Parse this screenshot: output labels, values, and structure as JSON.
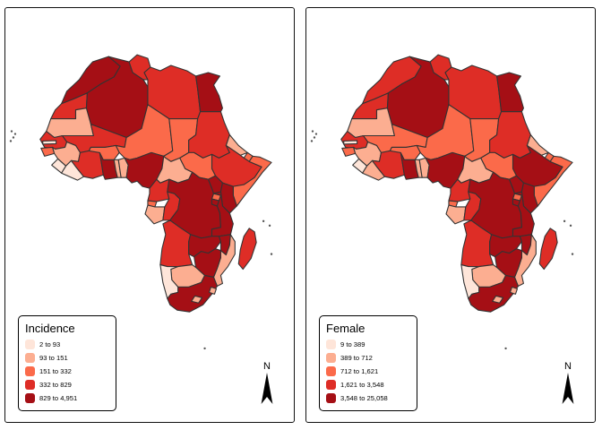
{
  "figure": {
    "type": "choropleth",
    "region": "Africa",
    "panel_count": 2
  },
  "palette": {
    "c1": "#fee5d9",
    "c2": "#fcae91",
    "c3": "#fb6a4a",
    "c4": "#de2d26",
    "c5": "#a50f15"
  },
  "map_border_color": "#333333",
  "panels": [
    {
      "id": "incidence",
      "legend_title": "Incidence",
      "value_key": "incidence_class",
      "north_label": "N",
      "legend_items": [
        {
          "label": "2 to 93",
          "class": 1
        },
        {
          "label": "93 to 151",
          "class": 2
        },
        {
          "label": "151 to 332",
          "class": 3
        },
        {
          "label": "332 to 829",
          "class": 4
        },
        {
          "label": "829 to 4,951",
          "class": 5
        }
      ]
    },
    {
      "id": "female",
      "legend_title": "Female",
      "value_key": "female_class",
      "north_label": "N",
      "legend_items": [
        {
          "label": "9 to 389",
          "class": 1
        },
        {
          "label": "389 to 712",
          "class": 2
        },
        {
          "label": "712 to 1,621",
          "class": 3
        },
        {
          "label": "1,621 to 3,548",
          "class": 4
        },
        {
          "label": "3,548 to 25,058",
          "class": 5
        }
      ]
    }
  ],
  "map": {
    "countries": [
      {
        "name": "morocco",
        "incidence_class": 5,
        "female_class": 4
      },
      {
        "name": "western-sahara",
        "incidence_class": 4,
        "female_class": 4
      },
      {
        "name": "algeria",
        "incidence_class": 5,
        "female_class": 5
      },
      {
        "name": "tunisia",
        "incidence_class": 4,
        "female_class": 4
      },
      {
        "name": "libya",
        "incidence_class": 4,
        "female_class": 4
      },
      {
        "name": "egypt",
        "incidence_class": 5,
        "female_class": 5
      },
      {
        "name": "mauritania",
        "incidence_class": 2,
        "female_class": 2
      },
      {
        "name": "mali",
        "incidence_class": 4,
        "female_class": 3
      },
      {
        "name": "niger",
        "incidence_class": 3,
        "female_class": 3
      },
      {
        "name": "chad",
        "incidence_class": 3,
        "female_class": 3
      },
      {
        "name": "sudan",
        "incidence_class": 4,
        "female_class": 4
      },
      {
        "name": "eritrea",
        "incidence_class": 2,
        "female_class": 2
      },
      {
        "name": "djibouti",
        "incidence_class": 3,
        "female_class": 3
      },
      {
        "name": "ethiopia",
        "incidence_class": 4,
        "female_class": 5
      },
      {
        "name": "somalia",
        "incidence_class": 3,
        "female_class": 3
      },
      {
        "name": "senegal",
        "incidence_class": 4,
        "female_class": 4
      },
      {
        "name": "gambia",
        "incidence_class": 1,
        "female_class": 1
      },
      {
        "name": "guinea-bissau",
        "incidence_class": 3,
        "female_class": 3
      },
      {
        "name": "guinea",
        "incidence_class": 2,
        "female_class": 2
      },
      {
        "name": "sierra-leone",
        "incidence_class": 1,
        "female_class": 1
      },
      {
        "name": "liberia",
        "incidence_class": 1,
        "female_class": 2
      },
      {
        "name": "ivory-coast",
        "incidence_class": 4,
        "female_class": 4
      },
      {
        "name": "ghana",
        "incidence_class": 5,
        "female_class": 5
      },
      {
        "name": "togo",
        "incidence_class": 2,
        "female_class": 2
      },
      {
        "name": "benin",
        "incidence_class": 2,
        "female_class": 2
      },
      {
        "name": "burkina-faso",
        "incidence_class": 3,
        "female_class": 3
      },
      {
        "name": "nigeria",
        "incidence_class": 5,
        "female_class": 5
      },
      {
        "name": "cameroon",
        "incidence_class": 4,
        "female_class": 4
      },
      {
        "name": "car",
        "incidence_class": 2,
        "female_class": 2
      },
      {
        "name": "south-sudan",
        "incidence_class": 3,
        "female_class": 3
      },
      {
        "name": "equatorial-guinea",
        "incidence_class": 3,
        "female_class": 3
      },
      {
        "name": "gabon",
        "incidence_class": 2,
        "female_class": 2
      },
      {
        "name": "congo",
        "incidence_class": 4,
        "female_class": 4
      },
      {
        "name": "drc",
        "incidence_class": 5,
        "female_class": 5
      },
      {
        "name": "uganda",
        "incidence_class": 5,
        "female_class": 5
      },
      {
        "name": "kenya",
        "incidence_class": 5,
        "female_class": 5
      },
      {
        "name": "rwanda",
        "incidence_class": 3,
        "female_class": 3
      },
      {
        "name": "burundi",
        "incidence_class": 5,
        "female_class": 5
      },
      {
        "name": "tanzania",
        "incidence_class": 5,
        "female_class": 5
      },
      {
        "name": "angola",
        "incidence_class": 4,
        "female_class": 4
      },
      {
        "name": "zambia",
        "incidence_class": 5,
        "female_class": 5
      },
      {
        "name": "malawi",
        "incidence_class": 5,
        "female_class": 5
      },
      {
        "name": "mozambique",
        "incidence_class": 2,
        "female_class": 2
      },
      {
        "name": "zimbabwe",
        "incidence_class": 5,
        "female_class": 5
      },
      {
        "name": "botswana",
        "incidence_class": 2,
        "female_class": 2
      },
      {
        "name": "namibia",
        "incidence_class": 1,
        "female_class": 1
      },
      {
        "name": "south-africa",
        "incidence_class": 5,
        "female_class": 5
      },
      {
        "name": "lesotho",
        "incidence_class": 2,
        "female_class": 2
      },
      {
        "name": "swaziland",
        "incidence_class": 2,
        "female_class": 2
      },
      {
        "name": "madagascar",
        "incidence_class": 4,
        "female_class": 4
      }
    ]
  }
}
